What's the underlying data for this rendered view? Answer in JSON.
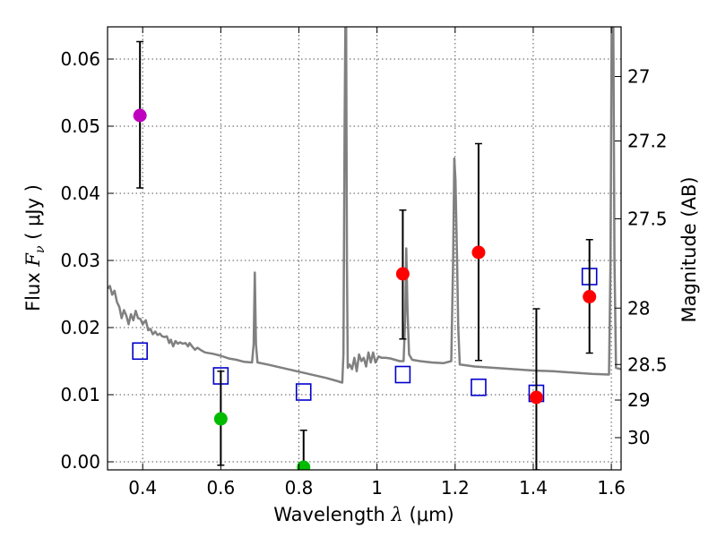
{
  "chart_data": {
    "type": "scatter",
    "xlabel_main": "Wavelength",
    "xlabel_symbol": "λ",
    "xlabel_unit": "(μm)",
    "ylabel_main": "Flux",
    "ylabel_symbol": "F",
    "ylabel_subscript": "ν",
    "ylabel_unit": "( μJy )",
    "y2label": "Magnitude (AB)",
    "xlim": [
      0.31,
      1.625
    ],
    "ylim": [
      -0.0012,
      0.0648
    ],
    "grid": true,
    "x_ticks": [
      0.4,
      0.6,
      0.8,
      1.0,
      1.2,
      1.4,
      1.6
    ],
    "x_tick_labels": [
      "0.4",
      "0.6",
      "0.8",
      "1",
      "1.2",
      "1.4",
      "1.6"
    ],
    "y_ticks": [
      0.0,
      0.01,
      0.02,
      0.03,
      0.04,
      0.05,
      0.06
    ],
    "y_tick_labels": [
      "0.00",
      "0.01",
      "0.02",
      "0.03",
      "0.04",
      "0.05",
      "0.06"
    ],
    "y2_ticks": [
      {
        "label": "27",
        "flux": 0.0574
      },
      {
        "label": "27.2",
        "flux": 0.0478
      },
      {
        "label": "27.5",
        "flux": 0.0362
      },
      {
        "label": "28",
        "flux": 0.0229
      },
      {
        "label": "28.5",
        "flux": 0.0145
      },
      {
        "label": "29",
        "flux": 0.0092
      },
      {
        "label": "30",
        "flux": 0.0036
      }
    ],
    "colors": {
      "sed_line": "#808080",
      "model_marker": "#0000cc",
      "purple": "#bf00bf",
      "green": "#00bb00",
      "red": "#ff0000",
      "errorbar": "#000000",
      "grid": "#555555"
    },
    "model_points": [
      {
        "x": 0.393,
        "y": 0.0165
      },
      {
        "x": 0.6,
        "y": 0.0128
      },
      {
        "x": 0.812,
        "y": 0.0104
      },
      {
        "x": 1.066,
        "y": 0.013
      },
      {
        "x": 1.26,
        "y": 0.0111
      },
      {
        "x": 1.408,
        "y": 0.0102
      },
      {
        "x": 1.544,
        "y": 0.0276
      }
    ],
    "observed_points": [
      {
        "x": 0.393,
        "y": 0.0516,
        "ylo": 0.0408,
        "yhi": 0.0626,
        "color": "purple"
      },
      {
        "x": 0.6,
        "y": 0.0064,
        "ylo": -0.0005,
        "yhi": 0.0135,
        "color": "green"
      },
      {
        "x": 0.812,
        "y": -0.0008,
        "ylo": -0.0012,
        "yhi": 0.0047,
        "color": "green"
      },
      {
        "x": 1.066,
        "y": 0.028,
        "ylo": 0.0183,
        "yhi": 0.0375,
        "color": "red"
      },
      {
        "x": 1.26,
        "y": 0.0312,
        "ylo": 0.0151,
        "yhi": 0.0474,
        "color": "red"
      },
      {
        "x": 1.408,
        "y": 0.0096,
        "ylo": -0.0012,
        "yhi": 0.0228,
        "color": "red"
      },
      {
        "x": 1.544,
        "y": 0.0246,
        "ylo": 0.0162,
        "yhi": 0.0331,
        "color": "red"
      }
    ],
    "sed_line": [
      [
        0.31,
        0.0258
      ],
      [
        0.316,
        0.0262
      ],
      [
        0.322,
        0.0249
      ],
      [
        0.328,
        0.0255
      ],
      [
        0.334,
        0.0238
      ],
      [
        0.34,
        0.0231
      ],
      [
        0.346,
        0.0214
      ],
      [
        0.352,
        0.0226
      ],
      [
        0.358,
        0.0218
      ],
      [
        0.364,
        0.0205
      ],
      [
        0.37,
        0.022
      ],
      [
        0.376,
        0.0211
      ],
      [
        0.382,
        0.0225
      ],
      [
        0.388,
        0.0214
      ],
      [
        0.394,
        0.0213
      ],
      [
        0.4,
        0.0205
      ],
      [
        0.408,
        0.0211
      ],
      [
        0.414,
        0.0196
      ],
      [
        0.42,
        0.0198
      ],
      [
        0.426,
        0.019
      ],
      [
        0.432,
        0.0194
      ],
      [
        0.438,
        0.0189
      ],
      [
        0.444,
        0.0191
      ],
      [
        0.45,
        0.0187
      ],
      [
        0.456,
        0.0186
      ],
      [
        0.462,
        0.0187
      ],
      [
        0.468,
        0.0177
      ],
      [
        0.472,
        0.0182
      ],
      [
        0.478,
        0.0172
      ],
      [
        0.484,
        0.018
      ],
      [
        0.49,
        0.0176
      ],
      [
        0.496,
        0.0178
      ],
      [
        0.502,
        0.0176
      ],
      [
        0.51,
        0.0177
      ],
      [
        0.516,
        0.0172
      ],
      [
        0.52,
        0.0177
      ],
      [
        0.528,
        0.0171
      ],
      [
        0.534,
        0.0167
      ],
      [
        0.54,
        0.017
      ],
      [
        0.55,
        0.0166
      ],
      [
        0.56,
        0.0163
      ],
      [
        0.58,
        0.0161
      ],
      [
        0.6,
        0.0158
      ],
      [
        0.62,
        0.0154
      ],
      [
        0.64,
        0.0152
      ],
      [
        0.66,
        0.0149
      ],
      [
        0.68,
        0.0148
      ],
      [
        0.684,
        0.0175
      ],
      [
        0.687,
        0.0282
      ],
      [
        0.69,
        0.0175
      ],
      [
        0.694,
        0.0148
      ],
      [
        0.72,
        0.0145
      ],
      [
        0.75,
        0.0141
      ],
      [
        0.78,
        0.0137
      ],
      [
        0.81,
        0.0133
      ],
      [
        0.84,
        0.0129
      ],
      [
        0.87,
        0.0125
      ],
      [
        0.9,
        0.012
      ],
      [
        0.911,
        0.0118
      ],
      [
        0.914,
        0.016
      ],
      [
        0.917,
        0.05
      ],
      [
        0.919,
        0.066
      ],
      [
        0.921,
        0.066
      ],
      [
        0.923,
        0.03
      ],
      [
        0.925,
        0.014
      ],
      [
        0.93,
        0.0145
      ],
      [
        0.936,
        0.0138
      ],
      [
        0.942,
        0.0155
      ],
      [
        0.948,
        0.0135
      ],
      [
        0.954,
        0.016
      ],
      [
        0.96,
        0.015
      ],
      [
        0.966,
        0.0155
      ],
      [
        0.972,
        0.0142
      ],
      [
        0.978,
        0.0163
      ],
      [
        0.984,
        0.0148
      ],
      [
        0.99,
        0.0163
      ],
      [
        0.996,
        0.0148
      ],
      [
        1.004,
        0.0157
      ],
      [
        1.012,
        0.0155
      ],
      [
        1.022,
        0.0155
      ],
      [
        1.034,
        0.0154
      ],
      [
        1.046,
        0.0152
      ],
      [
        1.058,
        0.015
      ],
      [
        1.068,
        0.015
      ],
      [
        1.072,
        0.021
      ],
      [
        1.075,
        0.0318
      ],
      [
        1.078,
        0.023
      ],
      [
        1.082,
        0.016
      ],
      [
        1.09,
        0.0152
      ],
      [
        1.11,
        0.015
      ],
      [
        1.14,
        0.0148
      ],
      [
        1.17,
        0.0147
      ],
      [
        1.19,
        0.015
      ],
      [
        1.195,
        0.03
      ],
      [
        1.198,
        0.0452
      ],
      [
        1.201,
        0.042
      ],
      [
        1.205,
        0.03
      ],
      [
        1.208,
        0.02
      ],
      [
        1.212,
        0.0145
      ],
      [
        1.25,
        0.0142
      ],
      [
        1.3,
        0.014
      ],
      [
        1.35,
        0.0138
      ],
      [
        1.4,
        0.0136
      ],
      [
        1.45,
        0.0135
      ],
      [
        1.5,
        0.0133
      ],
      [
        1.55,
        0.0131
      ],
      [
        1.594,
        0.013
      ],
      [
        1.598,
        0.03
      ],
      [
        1.601,
        0.066
      ],
      [
        1.605,
        0.066
      ],
      [
        1.608,
        0.03
      ],
      [
        1.612,
        0.014
      ],
      [
        1.625,
        0.0138
      ]
    ]
  }
}
